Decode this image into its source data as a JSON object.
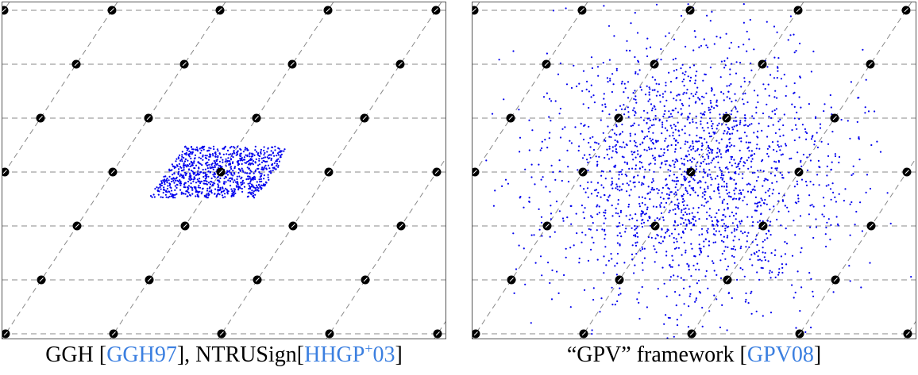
{
  "panels": [
    {
      "id": "left",
      "caption": {
        "pre": "GGH [",
        "cite1": "GGH97",
        "mid": "], NTRUSign[",
        "cite2": "HHGP",
        "sup": "+",
        "cite3": "03",
        "post": "]"
      },
      "distribution": "uniform-parallelepiped",
      "samples": 900
    },
    {
      "id": "right",
      "caption": {
        "pre": "“GPV” framework [",
        "cite1": "GPV08",
        "post": "]"
      },
      "distribution": "discrete-gaussian",
      "samples": 2000
    }
  ],
  "colors": {
    "lattice_point": "#000000",
    "sample_point": "#0000ee",
    "grid_line": "#888888",
    "citation": "#3b7fe0",
    "frame": "#555555"
  }
}
